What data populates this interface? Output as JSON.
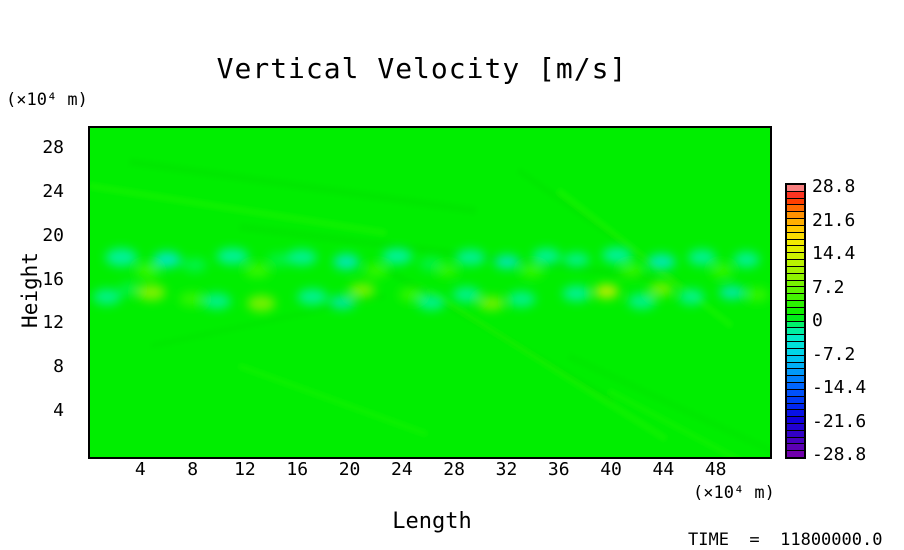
{
  "chart_data": {
    "type": "heatmap",
    "title": "Vertical Velocity [m/s]",
    "xlabel": "Length",
    "ylabel": "Height",
    "x_unit": "(×10⁴ m)",
    "y_unit": "(×10⁴ m)",
    "time_label": "TIME  =  11800000.0",
    "x_range": [
      0,
      52
    ],
    "y_range": [
      0,
      30
    ],
    "x_ticks": [
      4,
      8,
      12,
      16,
      20,
      24,
      28,
      32,
      36,
      40,
      44,
      48
    ],
    "y_ticks": [
      28,
      24,
      20,
      16,
      12,
      8,
      4
    ],
    "grid": false,
    "background_value": 0,
    "description": "Mostly uniform field at ~0 m/s (bright green) with a turbulent shear band between heights ~13-19 ×10^4 m containing alternating weak updrafts (yellow-green) and downdrafts (cyan), plus faint diagonal gravity-wave streaks elsewhere.",
    "palette": {
      "background": "#00ee00",
      "neg_light": "#00f2a8",
      "neg_mid": "#00e8d8",
      "neg_soft": "#00f566",
      "pos_soft": "#46fa00",
      "pos_mid": "#9ef200",
      "pos_strong": "#d8ee00",
      "dim": "#00dc00",
      "glow": "#38fa00"
    },
    "colorbar": {
      "ticks": [
        "28.8",
        "21.6",
        "14.4",
        "7.2",
        "0",
        "-7.2",
        "-14.4",
        "-21.6",
        "-28.8"
      ],
      "value_range": [
        -28.8,
        28.8
      ],
      "n_segments": 40,
      "position": "right",
      "stops": [
        [
          0.0,
          "#7a00a8"
        ],
        [
          0.04,
          "#5a00b4"
        ],
        [
          0.09,
          "#3000c8"
        ],
        [
          0.14,
          "#0e00dc"
        ],
        [
          0.19,
          "#0028f0"
        ],
        [
          0.26,
          "#0064ff"
        ],
        [
          0.32,
          "#00a0f8"
        ],
        [
          0.38,
          "#00d2ec"
        ],
        [
          0.44,
          "#00ecc8"
        ],
        [
          0.48,
          "#00f284"
        ],
        [
          0.52,
          "#00ee00"
        ],
        [
          0.58,
          "#3cf400"
        ],
        [
          0.65,
          "#84f400"
        ],
        [
          0.72,
          "#c0f200"
        ],
        [
          0.78,
          "#f0ee00"
        ],
        [
          0.83,
          "#ffd200"
        ],
        [
          0.88,
          "#ff9c00"
        ],
        [
          0.92,
          "#ff6000"
        ],
        [
          0.955,
          "#ff1e00"
        ],
        [
          0.975,
          "#f85858"
        ],
        [
          1.0,
          "#f8a4a4"
        ]
      ]
    },
    "turbulence_blobs": [
      [
        2.4,
        18.2,
        16,
        9,
        "neg_light",
        0.9
      ],
      [
        4.4,
        17.0,
        12,
        7,
        "pos_soft",
        0.8
      ],
      [
        5.9,
        18.0,
        14,
        8,
        "neg_mid",
        0.85
      ],
      [
        8.0,
        17.5,
        12,
        7,
        "neg_soft",
        0.7
      ],
      [
        10.9,
        18.3,
        16,
        8,
        "neg_light",
        0.9
      ],
      [
        12.8,
        17.0,
        13,
        7,
        "pos_soft",
        0.75
      ],
      [
        14.5,
        18.0,
        12,
        7,
        "neg_soft",
        0.6
      ],
      [
        16.2,
        18.2,
        15,
        8,
        "neg_light",
        0.85
      ],
      [
        19.6,
        17.8,
        13,
        8,
        "neg_mid",
        0.8
      ],
      [
        21.9,
        17.0,
        12,
        7,
        "pos_soft",
        0.7
      ],
      [
        23.5,
        18.3,
        15,
        8,
        "neg_light",
        0.9
      ],
      [
        26.1,
        17.6,
        12,
        7,
        "neg_soft",
        0.65
      ],
      [
        27.3,
        17.0,
        11,
        6,
        "pos_soft",
        0.7
      ],
      [
        29.1,
        18.2,
        15,
        8,
        "neg_light",
        0.85
      ],
      [
        31.9,
        17.8,
        13,
        7,
        "neg_mid",
        0.8
      ],
      [
        33.8,
        17.0,
        12,
        7,
        "pos_soft",
        0.7
      ],
      [
        34.9,
        18.3,
        14,
        8,
        "neg_light",
        0.85
      ],
      [
        37.2,
        18.0,
        13,
        7,
        "neg_light",
        0.8
      ],
      [
        40.3,
        18.4,
        15,
        8,
        "neg_light",
        0.9
      ],
      [
        41.4,
        17.0,
        12,
        7,
        "pos_soft",
        0.7
      ],
      [
        43.7,
        17.8,
        14,
        8,
        "neg_mid",
        0.8
      ],
      [
        46.8,
        18.2,
        14,
        8,
        "neg_light",
        0.85
      ],
      [
        48.3,
        17.0,
        11,
        7,
        "pos_soft",
        0.7
      ],
      [
        50.2,
        18.0,
        13,
        8,
        "neg_light",
        0.85
      ],
      [
        1.3,
        14.6,
        14,
        8,
        "neg_light",
        0.8
      ],
      [
        3.0,
        15.3,
        11,
        7,
        "neg_soft",
        0.6
      ],
      [
        4.7,
        15.0,
        14,
        8,
        "pos_mid",
        0.8
      ],
      [
        7.8,
        14.4,
        13,
        7,
        "pos_soft",
        0.7
      ],
      [
        9.7,
        14.2,
        14,
        8,
        "neg_light",
        0.8
      ],
      [
        13.1,
        14.0,
        14,
        8,
        "pos_mid",
        0.75
      ],
      [
        17.0,
        14.6,
        15,
        8,
        "neg_light",
        0.85
      ],
      [
        19.3,
        14.1,
        13,
        7,
        "neg_mid",
        0.7
      ],
      [
        20.8,
        15.2,
        13,
        7,
        "pos_mid",
        0.75
      ],
      [
        24.6,
        14.8,
        13,
        7,
        "pos_soft",
        0.7
      ],
      [
        26.1,
        14.1,
        14,
        8,
        "neg_light",
        0.8
      ],
      [
        28.8,
        14.8,
        14,
        8,
        "neg_light",
        0.8
      ],
      [
        30.7,
        14.0,
        13,
        7,
        "pos_mid",
        0.7
      ],
      [
        33.0,
        14.4,
        14,
        8,
        "neg_light",
        0.8
      ],
      [
        37.2,
        14.9,
        14,
        8,
        "neg_light",
        0.85
      ],
      [
        39.5,
        15.1,
        12,
        7,
        "pos_strong",
        0.85
      ],
      [
        42.2,
        14.2,
        14,
        8,
        "neg_light",
        0.8
      ],
      [
        43.7,
        15.3,
        12,
        7,
        "pos_mid",
        0.7
      ],
      [
        46.0,
        14.6,
        13,
        8,
        "neg_light",
        0.8
      ],
      [
        49.1,
        15.0,
        13,
        7,
        "neg_mid",
        0.75
      ],
      [
        51.0,
        14.8,
        12,
        7,
        "pos_soft",
        0.7
      ]
    ],
    "wave_streaks": [
      [
        40,
        30,
        350,
        8,
        "dim",
        8,
        0.35
      ],
      [
        0,
        55,
        300,
        6,
        "glow",
        9,
        0.3
      ],
      [
        150,
        95,
        420,
        8,
        "dim",
        7,
        0.3
      ],
      [
        430,
        40,
        200,
        6,
        "dim",
        35,
        0.3
      ],
      [
        470,
        60,
        220,
        6,
        "glow",
        38,
        0.28
      ],
      [
        300,
        140,
        260,
        7,
        "dim",
        30,
        0.3
      ],
      [
        340,
        160,
        280,
        6,
        "glow",
        32,
        0.25
      ],
      [
        60,
        215,
        240,
        6,
        "dim",
        -12,
        0.25
      ],
      [
        150,
        235,
        200,
        6,
        "glow",
        20,
        0.22
      ],
      [
        480,
        225,
        260,
        7,
        "dim",
        25,
        0.25
      ],
      [
        520,
        260,
        220,
        6,
        "glow",
        28,
        0.2
      ]
    ]
  }
}
